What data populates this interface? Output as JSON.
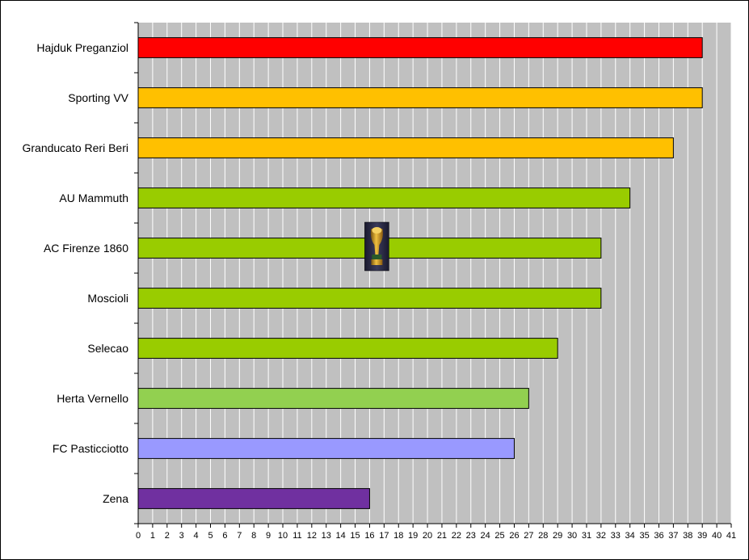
{
  "chart_data": {
    "type": "bar",
    "orientation": "horizontal",
    "title": "",
    "xlabel": "",
    "ylabel": "",
    "xlim": [
      0,
      41
    ],
    "grid": true,
    "legend": "none",
    "plot_background": "#c0c0c0",
    "grid_color": "#ffffff",
    "categories": [
      "Hajduk Preganziol",
      "Sporting VV",
      "Granducato Reri Beri",
      "AU Mammuth",
      "AC Firenze 1860",
      "Moscioli",
      "Selecao",
      "Herta Vernello",
      "FC Pasticciotto",
      "Zena"
    ],
    "values": [
      39,
      39,
      37,
      34,
      32,
      32,
      29,
      27,
      26,
      16
    ],
    "bar_colors": [
      "#ff0000",
      "#ffc000",
      "#ffc000",
      "#99cc00",
      "#99cc00",
      "#99cc00",
      "#99cc00",
      "#92d050",
      "#9999ff",
      "#7030a0"
    ],
    "x_ticks": [
      "0",
      "1",
      "2",
      "3",
      "4",
      "5",
      "6",
      "7",
      "8",
      "9",
      "10",
      "11",
      "12",
      "13",
      "14",
      "15",
      "16",
      "17",
      "18",
      "19",
      "20",
      "21",
      "22",
      "23",
      "24",
      "25",
      "26",
      "27",
      "28",
      "29",
      "30",
      "31",
      "32",
      "33",
      "34",
      "35",
      "36",
      "37",
      "38",
      "39",
      "40",
      "41"
    ],
    "annotation": {
      "icon": "trophy-icon",
      "category": "AC Firenze 1860",
      "x_value": 16.5
    }
  }
}
